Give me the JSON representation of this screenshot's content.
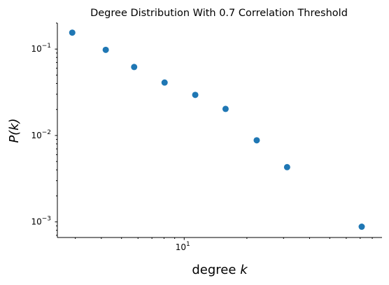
{
  "chart_data": {
    "type": "scatter",
    "title": "Degree Distribution With 0.7 Correlation Threshold",
    "xlabel_prefix": "degree ",
    "xlabel_var": "k",
    "ylabel_prefix": "P(",
    "ylabel_var": "k",
    "ylabel_suffix": ")",
    "xscale": "log",
    "yscale": "log",
    "xlim": [
      2.46,
      89.1
    ],
    "ylim": [
      0.00066,
      0.2
    ],
    "x_ticks": [
      {
        "value": 10,
        "base": "10",
        "exp": "1"
      }
    ],
    "y_ticks": [
      {
        "value": 0.1,
        "base": "10",
        "exp": "−1"
      },
      {
        "value": 0.01,
        "base": "10",
        "exp": "−2"
      },
      {
        "value": 0.001,
        "base": "10",
        "exp": "−3"
      }
    ],
    "grid": false,
    "legend": false,
    "color": "#1f77b4",
    "points": [
      {
        "x": 2.9,
        "y": 0.155
      },
      {
        "x": 4.2,
        "y": 0.098
      },
      {
        "x": 5.75,
        "y": 0.062
      },
      {
        "x": 8.05,
        "y": 0.041
      },
      {
        "x": 11.3,
        "y": 0.0295
      },
      {
        "x": 15.8,
        "y": 0.0203
      },
      {
        "x": 22.3,
        "y": 0.0088
      },
      {
        "x": 31.2,
        "y": 0.0043
      },
      {
        "x": 71.2,
        "y": 0.00088
      }
    ]
  }
}
